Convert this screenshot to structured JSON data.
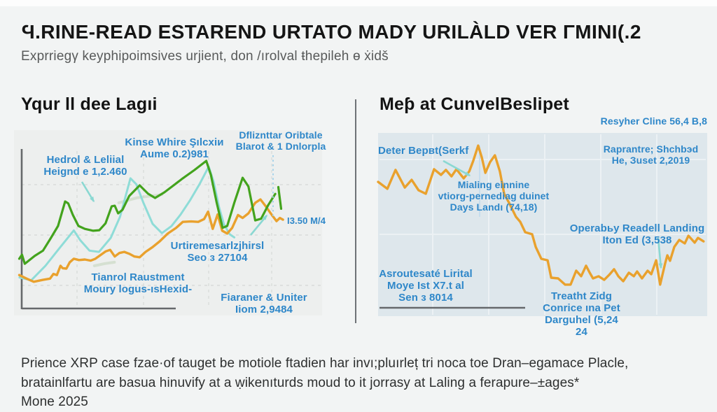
{
  "page": {
    "title": "Ϥ.RINE-READ ESTAREND URTATO MADY URILÀLD VER ΓMINΙ(.2",
    "subtitle": "Exprriegγ keyphipоimsives urjient, don /ırolval ŧhepileh ɵ ẋidš",
    "footer_line1": "Prience XRP case fzae·of tauget be motiole ftadien har invı;pluırleț tri noca toe Dran–egamace Placle,",
    "footer_line2": "bratainlfartu are basua hinuvify at a ẉikenıturds moud to it jorrasy at Laling a ferapure–±ages*",
    "footer_line3": "Mone 2025"
  },
  "colors": {
    "annotation_blue": "#2e87c9",
    "green": "#43a31d",
    "cyan": "#8edcd7",
    "orange": "#e9a12d",
    "axis_gray": "#66696b",
    "left_panel_bg": "#edefee",
    "right_panel_bg": "#dee7ec"
  },
  "chart_data": [
    {
      "type": "line",
      "title": "Yqur ll dee Lagıi",
      "xlabel": "",
      "ylabel": "",
      "axes_labeled": false,
      "grid": "dashed",
      "legend": "none",
      "coords": "percent of plot box, y measured downward from top edge",
      "series": [
        {
          "name": "sage-faint-low",
          "color": "#b9cfae",
          "width": 4,
          "opacity": 0.45,
          "points": [
            [
              26.1,
              73.2
            ],
            [
              29.5,
              72.0
            ],
            [
              32.6,
              71.3
            ]
          ]
        },
        {
          "name": "sage-faint-mid",
          "color": "#b9cfae",
          "width": 4,
          "opacity": 0.45,
          "points": [
            [
              34.0,
              39.2
            ],
            [
              40.0,
              36.5
            ],
            [
              48.0,
              34.8
            ]
          ]
        },
        {
          "name": "cyan-line",
          "color": "#8edcd7",
          "width": 3,
          "opacity": 1,
          "points": [
            [
              1.8,
              79.5
            ],
            [
              5.6,
              81.0
            ],
            [
              10.2,
              73.2
            ],
            [
              14.7,
              63.8
            ],
            [
              19.4,
              54.1
            ],
            [
              21.5,
              59.4
            ],
            [
              24.5,
              65.0
            ],
            [
              27.6,
              65.7
            ],
            [
              31.4,
              58.1
            ],
            [
              34.4,
              46.8
            ],
            [
              37.8,
              26.0
            ],
            [
              39.7,
              29.2
            ],
            [
              42.0,
              39.2
            ],
            [
              45.0,
              50.6
            ],
            [
              48.0,
              55.6
            ],
            [
              51.1,
              51.8
            ],
            [
              54.1,
              45.5
            ],
            [
              57.1,
              38.0
            ],
            [
              60.2,
              29.2
            ],
            [
              63.2,
              19.7
            ],
            [
              64.8,
              27.9
            ],
            [
              66.6,
              41.8
            ],
            [
              68.1,
              50.6
            ],
            [
              70.0,
              56.2
            ],
            [
              71.5,
              57.9
            ]
          ]
        },
        {
          "name": "orange-line",
          "color": "#e9a12d",
          "width": 3.4,
          "opacity": 1,
          "points": [
            [
              1.7,
              78.2
            ],
            [
              4.1,
              80.1
            ],
            [
              6.4,
              81.8
            ],
            [
              9.4,
              80.8
            ],
            [
              11.7,
              80.1
            ],
            [
              12.8,
              77.6
            ],
            [
              13.9,
              78.2
            ],
            [
              15.1,
              73.2
            ],
            [
              15.8,
              74.5
            ],
            [
              17.0,
              74.7
            ],
            [
              18.1,
              71.3
            ],
            [
              19.4,
              69.4
            ],
            [
              21.1,
              70.1
            ],
            [
              23.0,
              69.8
            ],
            [
              24.9,
              70.4
            ],
            [
              26.4,
              69.4
            ],
            [
              28.0,
              67.5
            ],
            [
              29.8,
              65.4
            ],
            [
              31.2,
              64.6
            ],
            [
              32.7,
              68.2
            ],
            [
              34.2,
              66.3
            ],
            [
              35.8,
              65.7
            ],
            [
              37.4,
              66.7
            ],
            [
              39.1,
              68.2
            ],
            [
              40.8,
              68.6
            ],
            [
              42.7,
              65.7
            ],
            [
              45.0,
              63.1
            ],
            [
              47.3,
              60.0
            ],
            [
              49.9,
              55.8
            ],
            [
              52.6,
              52.8
            ],
            [
              54.8,
              49.5
            ],
            [
              57.5,
              49.3
            ],
            [
              59.8,
              49.5
            ],
            [
              61.7,
              48.0
            ],
            [
              63.0,
              44.0
            ],
            [
              64.5,
              53.3
            ],
            [
              66.1,
              45.5
            ],
            [
              67.6,
              54.3
            ],
            [
              69.2,
              55.8
            ],
            [
              70.8,
              52.8
            ],
            [
              72.7,
              45.8
            ],
            [
              74.2,
              47.4
            ],
            [
              76.1,
              44.9
            ],
            [
              78.3,
              39.2
            ],
            [
              80.0,
              37.4
            ],
            [
              81.7,
              41.1
            ],
            [
              83.6,
              45.5
            ],
            [
              85.2,
              49.1
            ],
            [
              86.3,
              47.4
            ],
            [
              87.3,
              48.3
            ]
          ]
        },
        {
          "name": "green-line",
          "color": "#43a31d",
          "width": 3.2,
          "opacity": 1,
          "points": [
            [
              1.7,
              69.4
            ],
            [
              2.6,
              67.2
            ],
            [
              3.5,
              72.1
            ],
            [
              6.7,
              67.9
            ],
            [
              9.4,
              65.0
            ],
            [
              12.0,
              58.1
            ],
            [
              14.3,
              51.7
            ],
            [
              16.6,
              38.5
            ],
            [
              17.6,
              39.5
            ],
            [
              19.1,
              45.7
            ],
            [
              20.9,
              51.7
            ],
            [
              23.0,
              53.3
            ],
            [
              25.7,
              54.3
            ],
            [
              27.7,
              54.0
            ],
            [
              29.7,
              50.3
            ],
            [
              31.7,
              41.1
            ],
            [
              32.7,
              40.8
            ],
            [
              33.8,
              44.9
            ],
            [
              35.2,
              43.0
            ],
            [
              37.4,
              35.5
            ],
            [
              40.8,
              29.8
            ],
            [
              43.5,
              34.3
            ],
            [
              45.8,
              36.6
            ],
            [
              48.8,
              33.6
            ],
            [
              51.8,
              29.8
            ],
            [
              54.8,
              26.0
            ],
            [
              58.6,
              21.5
            ],
            [
              62.4,
              16.6
            ],
            [
              63.9,
              24.2
            ],
            [
              65.8,
              39.2
            ],
            [
              67.7,
              52.7
            ],
            [
              69.2,
              51.7
            ],
            [
              71.5,
              39.2
            ],
            [
              74.2,
              25.7
            ],
            [
              76.1,
              30.4
            ],
            [
              78.3,
              48.7
            ],
            [
              80.2,
              47.8
            ],
            [
              82.5,
              40.5
            ],
            [
              84.8,
              34.4
            ]
          ]
        },
        {
          "name": "green-detached-tick",
          "color": "#43a31d",
          "width": 3.2,
          "opacity": 1,
          "points": [
            [
              85.8,
              30.7
            ],
            [
              86.7,
              42.4
            ]
          ]
        }
      ],
      "annotations": [
        {
          "id": "hedrol",
          "lines": [
            "Hedrol & Leliial",
            "Heignd e 1,2.460"
          ]
        },
        {
          "id": "kinse",
          "lines": [
            "Kinse Whire Şılcxiи",
            "Aume 0.2)981"
          ]
        },
        {
          "id": "dfliz",
          "lines": [
            "Dfliznttar Oribtale",
            "Blarot & 1 Dnlorpla"
          ]
        },
        {
          "id": "urti",
          "lines": [
            "Urtiremesarlzjhirsl",
            "Seo з 27104"
          ]
        },
        {
          "id": "tianrol",
          "lines": [
            "Tianrol Raustment",
            "Moury logus-ısHexid-"
          ]
        },
        {
          "id": "fiaraner",
          "lines": [
            "Fiaraner & Uniter",
            "Iiom 2,9484"
          ]
        },
        {
          "id": "i350",
          "lines": [
            "I3.50 M/4"
          ]
        }
      ]
    },
    {
      "type": "line",
      "title": "Meƥ at CunvelBeslipet",
      "xlabel": "",
      "ylabel": "",
      "axes_labeled": false,
      "grid": "light vertical bands",
      "legend": "none",
      "coords": "percent of plot box, y measured downward from top edge",
      "series": [
        {
          "name": "orange-line",
          "color": "#e9a12d",
          "width": 3.4,
          "opacity": 1,
          "points": [
            [
              0,
              26.7
            ],
            [
              2.8,
              30.5
            ],
            [
              5.3,
              20.2
            ],
            [
              8.1,
              29.8
            ],
            [
              10.2,
              25.6
            ],
            [
              12.3,
              31.3
            ],
            [
              14.5,
              33.2
            ],
            [
              17.0,
              19.8
            ],
            [
              19.1,
              22.9
            ],
            [
              20.6,
              20.2
            ],
            [
              22.3,
              23.7
            ],
            [
              23.8,
              19.8
            ],
            [
              26.0,
              24.8
            ],
            [
              27.7,
              21.0
            ],
            [
              28.9,
              15.3
            ],
            [
              30.4,
              6.9
            ],
            [
              31.5,
              13.4
            ],
            [
              32.6,
              21.8
            ],
            [
              34.0,
              16.0
            ],
            [
              35.5,
              12.2
            ],
            [
              37.0,
              21.0
            ],
            [
              38.3,
              33.2
            ],
            [
              39.8,
              38.2
            ],
            [
              41.9,
              45.8
            ],
            [
              43.2,
              48.5
            ],
            [
              44.7,
              54.2
            ],
            [
              46.8,
              55.3
            ],
            [
              47.9,
              62.2
            ],
            [
              49.6,
              68.7
            ],
            [
              51.5,
              69.5
            ],
            [
              52.6,
              79.0
            ],
            [
              54.7,
              79.4
            ],
            [
              56.8,
              82.8
            ],
            [
              58.5,
              82.8
            ],
            [
              60.2,
              75.2
            ],
            [
              61.7,
              78.2
            ],
            [
              63.2,
              72.5
            ],
            [
              64.3,
              76.3
            ],
            [
              65.3,
              79.4
            ],
            [
              67.0,
              78.2
            ],
            [
              68.7,
              80.2
            ],
            [
              70.2,
              77.5
            ],
            [
              71.7,
              74.4
            ],
            [
              73.0,
              78.2
            ],
            [
              74.5,
              80.9
            ],
            [
              76.2,
              76.3
            ],
            [
              77.7,
              78.2
            ],
            [
              78.7,
              75.6
            ],
            [
              80.2,
              79.4
            ],
            [
              81.9,
              75.2
            ],
            [
              83.0,
              77.1
            ],
            [
              84.5,
              69.5
            ],
            [
              85.7,
              82.8
            ],
            [
              87.2,
              71.4
            ],
            [
              87.9,
              66.8
            ],
            [
              88.7,
              69.8
            ],
            [
              90.0,
              62.2
            ],
            [
              91.5,
              58.4
            ],
            [
              93.2,
              60.3
            ],
            [
              94.3,
              56.1
            ],
            [
              96.2,
              59.9
            ],
            [
              97.2,
              57.3
            ],
            [
              98.9,
              59.2
            ]
          ]
        }
      ],
      "annotations": [
        {
          "id": "resyher",
          "lines": [
            "Resyher Clinе 56,4 B,8"
          ]
        },
        {
          "id": "deter",
          "lines": [
            "Deter Bepвt(Serkf"
          ]
        },
        {
          "id": "raprantre",
          "lines": [
            "Raprantre; Shchbэd",
            "He, Зuset 2,2019"
          ]
        },
        {
          "id": "mialing",
          "lines": [
            "Mialing einnine",
            "vtiorg-pernediag duinet",
            "Days Landı (74,18)"
          ]
        },
        {
          "id": "operab",
          "lines": [
            "Oрerabьy Readell Landing",
            "Itоn Ed (3,538"
          ]
        },
        {
          "id": "asroutes",
          "lines": [
            "Asroutesаté Lirital",
            "Moye Ist X7.t al",
            "Sen з 8014"
          ]
        },
        {
          "id": "treatht",
          "lines": [
            "Treatht Zidg",
            "Conrice ına Pet",
            "Darguhel (5,24 24"
          ]
        }
      ]
    }
  ]
}
